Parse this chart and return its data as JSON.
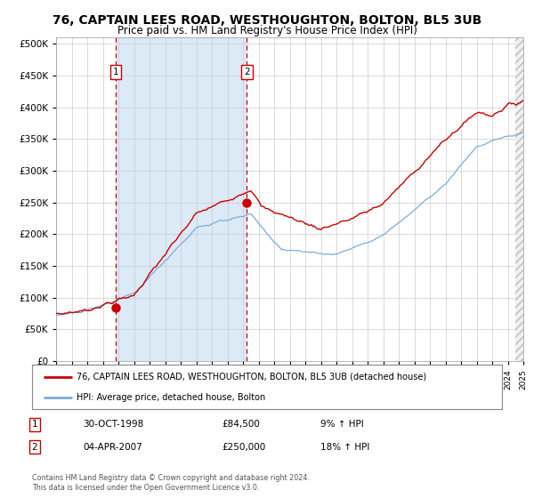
{
  "title": "76, CAPTAIN LEES ROAD, WESTHOUGHTON, BOLTON, BL5 3UB",
  "subtitle": "Price paid vs. HM Land Registry's House Price Index (HPI)",
  "legend_line1": "76, CAPTAIN LEES ROAD, WESTHOUGHTON, BOLTON, BL5 3UB (detached house)",
  "legend_line2": "HPI: Average price, detached house, Bolton",
  "annotation1_date": "30-OCT-1998",
  "annotation1_price": "£84,500",
  "annotation1_hpi": "9% ↑ HPI",
  "annotation2_date": "04-APR-2007",
  "annotation2_price": "£250,000",
  "annotation2_hpi": "18% ↑ HPI",
  "sale1_year": 1998.83,
  "sale1_value": 84500,
  "sale2_year": 2007.25,
  "sale2_value": 250000,
  "red_color": "#cc0000",
  "blue_color": "#7aadda",
  "shade_color": "#dce9f7",
  "vline_color": "#cc0000",
  "grid_color": "#cccccc",
  "background_color": "#ffffff",
  "footnote": "Contains HM Land Registry data © Crown copyright and database right 2024.\nThis data is licensed under the Open Government Licence v3.0."
}
